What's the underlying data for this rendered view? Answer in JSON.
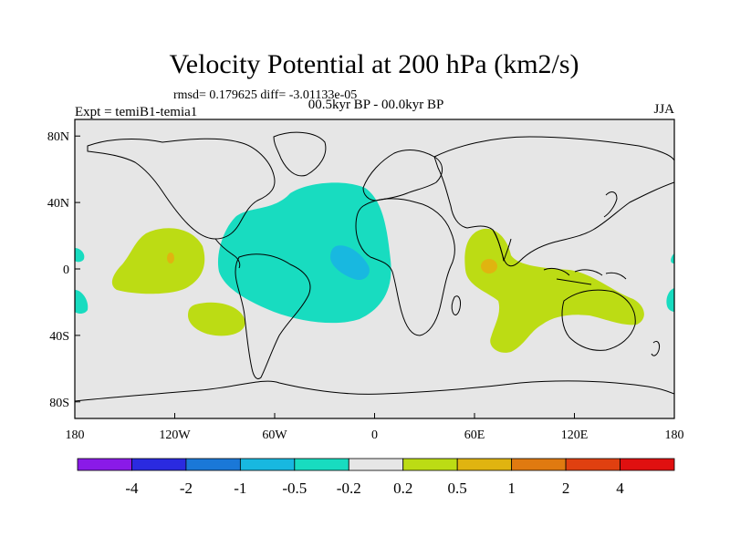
{
  "chart_data": {
    "type": "heatmap",
    "title": "Velocity Potential at 200 hPa (km2/s)",
    "stats": "rmsd= 0.179625 diff= -3.01133e-05",
    "subtitle": "00.5kyr BP - 00.0kyr BP",
    "left_label": "Expt = temiB1-temia1",
    "right_label": "JJA",
    "x_ticks": [
      "180",
      "120W",
      "60W",
      "0",
      "60E",
      "120E",
      "180"
    ],
    "y_ticks": [
      "80N",
      "40N",
      "0",
      "40S",
      "80S"
    ],
    "x_range": [
      -180,
      180
    ],
    "y_range": [
      -90,
      90
    ],
    "colorbar": {
      "levels": [
        "-4",
        "-2",
        "-1",
        "-0.5",
        "-0.2",
        "0.2",
        "0.5",
        "1",
        "2",
        "4"
      ],
      "colors": [
        "#8a1ae8",
        "#2a2ae0",
        "#1a78d8",
        "#18b8e0",
        "#18dcc0",
        "#e6e6e6",
        "#bcdc14",
        "#e0b410",
        "#e07a10",
        "#e04010",
        "#e01010"
      ]
    },
    "regions": [
      {
        "name": "atlantic-negative",
        "level": "-0.5 to -0.2",
        "lon_range": [
          -100,
          10
        ],
        "lat_range": [
          -35,
          50
        ]
      },
      {
        "name": "south-atlantic-minimum",
        "level": "-1 to -0.5",
        "lon_range": [
          -25,
          5
        ],
        "lat_range": [
          -10,
          10
        ]
      },
      {
        "name": "central-pacific-positive",
        "level": "0.2 to 0.5",
        "lon_range": [
          -160,
          -115
        ],
        "lat_range": [
          -15,
          25
        ]
      },
      {
        "name": "central-pacific-max",
        "level": "0.5 to 1",
        "lon_range": [
          -125,
          -118
        ],
        "lat_range": [
          5,
          10
        ]
      },
      {
        "name": "southeast-pacific-positive",
        "level": "0.2 to 0.5",
        "lon_range": [
          -112,
          -80
        ],
        "lat_range": [
          -42,
          -22
        ]
      },
      {
        "name": "indian-ocean-positive",
        "level": "0.2 to 0.5",
        "lon_range": [
          40,
          160
        ],
        "lat_range": [
          -50,
          25
        ]
      },
      {
        "name": "indian-ocean-max",
        "level": "0.5 to 1",
        "lon_range": [
          63,
          70
        ],
        "lat_range": [
          -4,
          4
        ]
      }
    ]
  }
}
